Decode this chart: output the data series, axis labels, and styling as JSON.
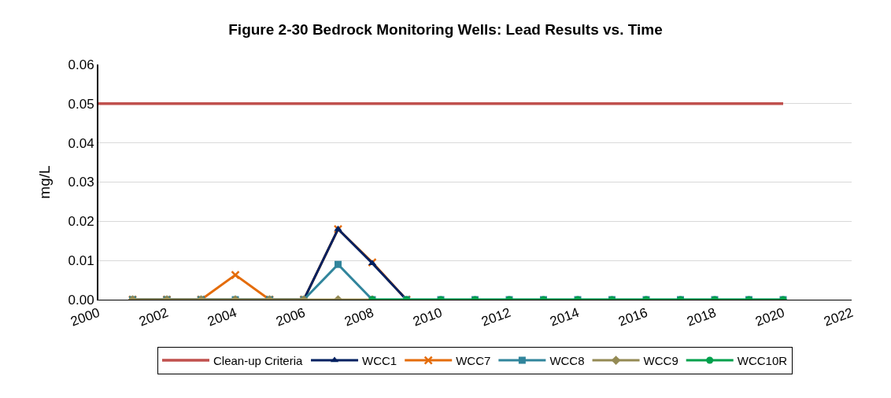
{
  "chart_data": {
    "type": "line",
    "title": "Figure 2-30 Bedrock Monitoring Wells: Lead Results vs. Time",
    "ylabel": "mg/L",
    "xlim": [
      2000,
      2022
    ],
    "xticks": [
      2000,
      2002,
      2004,
      2006,
      2008,
      2010,
      2012,
      2014,
      2016,
      2018,
      2020,
      2022
    ],
    "ylim": [
      0,
      0.06
    ],
    "yticks": [
      {
        "value": 0,
        "label": "0.00"
      },
      {
        "value": 0.01,
        "label": "0.01"
      },
      {
        "value": 0.02,
        "label": "0.02"
      },
      {
        "value": 0.03,
        "label": "0.03"
      },
      {
        "value": 0.04,
        "label": "0.04"
      },
      {
        "value": 0.05,
        "label": "0.05"
      },
      {
        "value": 0.06,
        "label": "0.06"
      }
    ],
    "grid": "y",
    "legend": "bottom",
    "series": [
      {
        "name": "Clean-up Criteria",
        "color": "#c0504d",
        "marker": "none",
        "x": [
          2000,
          2020
        ],
        "values": [
          0.05,
          0.05
        ]
      },
      {
        "name": "WCC1",
        "color": "#002060",
        "marker": "triangle",
        "x": [
          2001,
          2002,
          2003,
          2004,
          2005,
          2006,
          2007,
          2008,
          2009
        ],
        "values": [
          0,
          0,
          0,
          0,
          0,
          0,
          0.018,
          0.0093,
          0
        ]
      },
      {
        "name": "WCC7",
        "color": "#e46c0a",
        "marker": "cross",
        "x": [
          2001,
          2002,
          2003,
          2004,
          2005,
          2006,
          2007,
          2008,
          2009
        ],
        "values": [
          0,
          0,
          0,
          0.0063,
          0,
          0,
          0.018,
          0.0095,
          0
        ]
      },
      {
        "name": "WCC8",
        "color": "#31859c",
        "marker": "square",
        "x": [
          2001,
          2002,
          2003,
          2004,
          2005,
          2006,
          2007,
          2008,
          2009,
          2010,
          2011,
          2012,
          2013,
          2014,
          2015,
          2016,
          2017,
          2018,
          2019,
          2020
        ],
        "values": [
          0,
          0,
          0,
          0,
          0,
          0,
          0.009,
          0,
          0,
          0,
          0,
          0,
          0,
          0,
          0,
          0,
          0,
          0,
          0,
          0
        ]
      },
      {
        "name": "WCC9",
        "color": "#948a54",
        "marker": "diamond",
        "x": [
          2001,
          2002,
          2003,
          2004,
          2005,
          2006,
          2007,
          2008
        ],
        "values": [
          0,
          0,
          0,
          0,
          0,
          0,
          0,
          0
        ]
      },
      {
        "name": "WCC10R",
        "color": "#00a04c",
        "marker": "circle",
        "x": [
          2008,
          2009,
          2010,
          2011,
          2012,
          2013,
          2014,
          2015,
          2016,
          2017,
          2018,
          2019,
          2020
        ],
        "values": [
          0,
          0,
          0,
          0,
          0,
          0,
          0,
          0,
          0,
          0,
          0,
          0,
          0
        ]
      }
    ]
  }
}
